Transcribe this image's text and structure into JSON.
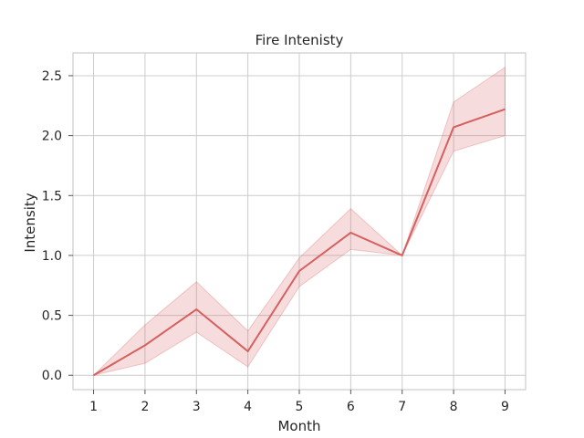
{
  "chart_data": {
    "type": "line",
    "title": "Fire Intenisty",
    "xlabel": "Month",
    "ylabel": "Intensity",
    "x": [
      1,
      2,
      3,
      4,
      5,
      6,
      7,
      8,
      9
    ],
    "series": [
      {
        "values": [
          0.0,
          0.25,
          0.55,
          0.2,
          0.87,
          1.19,
          1.0,
          2.07,
          2.22
        ],
        "ci_lower": [
          0.0,
          0.1,
          0.36,
          0.07,
          0.74,
          1.05,
          1.0,
          1.87,
          2.0
        ],
        "ci_upper": [
          0.0,
          0.42,
          0.78,
          0.37,
          0.98,
          1.39,
          1.0,
          2.28,
          2.57
        ],
        "color": "#d65f5f"
      }
    ],
    "xticks": [
      1,
      2,
      3,
      4,
      5,
      6,
      7,
      8,
      9
    ],
    "yticks": [
      "0.0",
      "0.5",
      "1.0",
      "1.5",
      "2.0",
      "2.5"
    ],
    "xlim": [
      0.6,
      9.4
    ],
    "ylim": [
      -0.12,
      2.69
    ],
    "grid": true,
    "colors": {
      "grid": "#cccccc",
      "band": "#d65f5f",
      "text": "#262626"
    }
  }
}
